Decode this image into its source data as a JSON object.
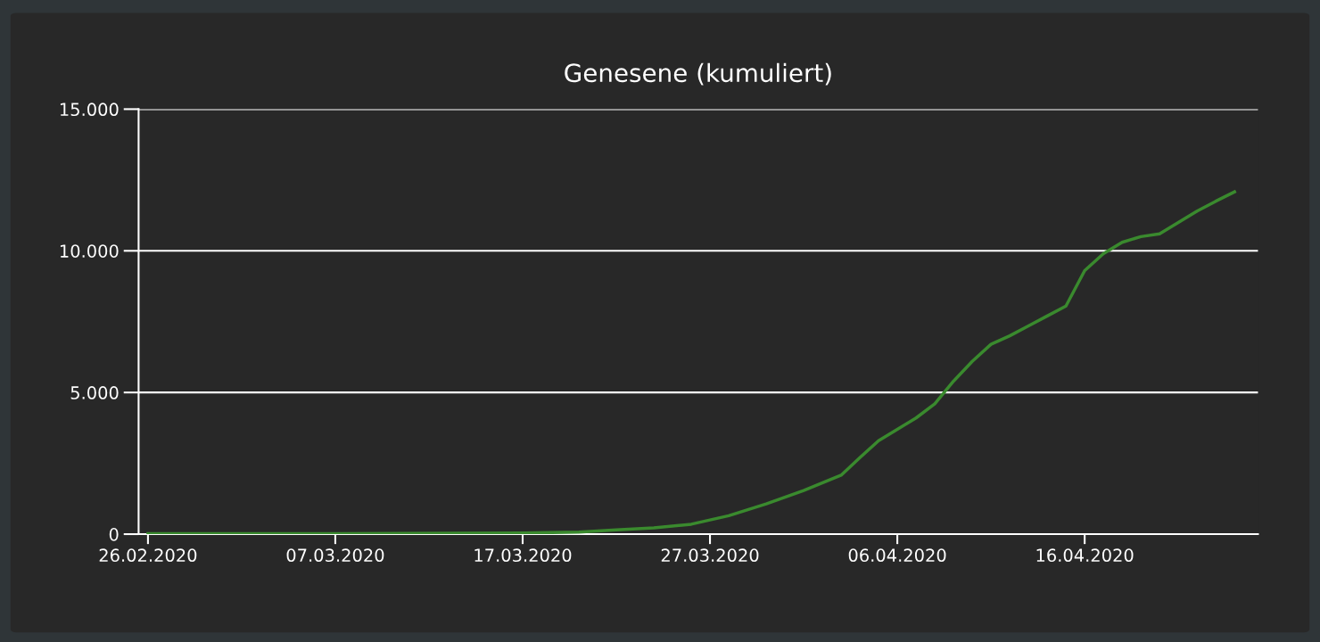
{
  "chart_data": {
    "type": "line",
    "title": "Genesene (kumuliert)",
    "x": [
      "2020-02-26",
      "2020-03-07",
      "2020-03-17",
      "2020-03-20",
      "2020-03-22",
      "2020-03-24",
      "2020-03-26",
      "2020-03-28",
      "2020-03-30",
      "2020-04-01",
      "2020-04-03",
      "2020-04-04",
      "2020-04-05",
      "2020-04-06",
      "2020-04-07",
      "2020-04-08",
      "2020-04-09",
      "2020-04-10",
      "2020-04-11",
      "2020-04-12",
      "2020-04-13",
      "2020-04-14",
      "2020-04-15",
      "2020-04-16",
      "2020-04-17",
      "2020-04-18",
      "2020-04-19",
      "2020-04-20",
      "2020-04-21",
      "2020-04-22",
      "2020-04-23",
      "2020-04-24"
    ],
    "series": [
      {
        "color": "#3a8a2e",
        "values": [
          16,
          20,
          40,
          70,
          150,
          220,
          350,
          650,
          1070,
          1540,
          2080,
          2700,
          3300,
          3700,
          4100,
          4600,
          5400,
          6100,
          6700,
          7000,
          7350,
          7700,
          8050,
          9300,
          9900,
          10300,
          10500,
          10600,
          11000,
          11400,
          11750,
          12080
        ]
      }
    ],
    "xlim": [
      "2020-02-25T12:00",
      "2020-04-25T06:00"
    ],
    "xticks": [
      {
        "value": "2020-02-26",
        "label": "26.02.2020"
      },
      {
        "value": "2020-03-07",
        "label": "07.03.2020"
      },
      {
        "value": "2020-03-17",
        "label": "17.03.2020"
      },
      {
        "value": "2020-03-27",
        "label": "27.03.2020"
      },
      {
        "value": "2020-04-06",
        "label": "06.04.2020"
      },
      {
        "value": "2020-04-16",
        "label": "16.04.2020"
      }
    ],
    "ylim": [
      0,
      15000
    ],
    "yticks": [
      0,
      {
        "value": 5000,
        "label": "5.000"
      },
      {
        "value": 10000,
        "label": "10.000"
      },
      {
        "value": 15000,
        "label": "15.000"
      }
    ],
    "grid": "y",
    "legend": false,
    "marker": "none",
    "line_style": "solid"
  }
}
